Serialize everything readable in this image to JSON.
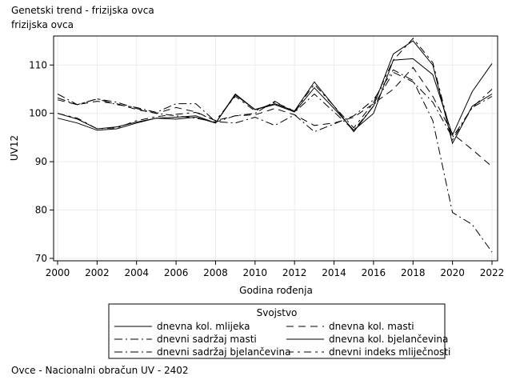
{
  "title": "Genetski trend - frizijska ovca",
  "subtitle": "frizijska ovca",
  "footnote": "Ovce - Nacionalni obračun UV - 2402",
  "chart_data": {
    "type": "line",
    "xlabel": "Godina rođenja",
    "ylabel": "UV12",
    "xlim": [
      2000,
      2022
    ],
    "ylim": [
      69.5,
      116
    ],
    "xticks": [
      2000,
      2002,
      2004,
      2006,
      2008,
      2010,
      2012,
      2014,
      2016,
      2018,
      2020,
      2022
    ],
    "yticks": [
      70,
      80,
      90,
      100,
      110
    ],
    "grid": true,
    "legend": {
      "title": "Svojstvo",
      "placement": "bottom"
    },
    "x": [
      2000,
      2001,
      2002,
      2003,
      2004,
      2005,
      2006,
      2007,
      2008,
      2009,
      2010,
      2011,
      2012,
      2013,
      2014,
      2015,
      2016,
      2017,
      2018,
      2019,
      2020,
      2021,
      2022
    ],
    "series": [
      {
        "name": "dnevna kol. mlijeka",
        "dash": "solid",
        "values": [
          99.0,
          98.0,
          96.5,
          96.8,
          98.0,
          99.0,
          98.8,
          99.2,
          98.0,
          103.8,
          100.8,
          101.8,
          100.3,
          105.3,
          101.0,
          96.5,
          100.0,
          111.0,
          111.3,
          108.0,
          95.5,
          104.5,
          110.3
        ]
      },
      {
        "name": "dnevna kol. masti",
        "dash": "long",
        "values": [
          102.8,
          101.8,
          102.5,
          102.0,
          100.8,
          100.0,
          101.2,
          100.3,
          98.5,
          99.5,
          99.7,
          101.0,
          99.7,
          97.5,
          98.0,
          99.2,
          102.0,
          105.0,
          109.5,
          103.5,
          95.8,
          92.5,
          89.0
        ]
      },
      {
        "name": "dnevni sadržaj masti",
        "dash": "dashdot",
        "values": [
          104.0,
          101.8,
          103.0,
          101.8,
          101.2,
          100.2,
          102.0,
          102.0,
          98.3,
          98.0,
          99.2,
          97.5,
          99.7,
          96.2,
          97.8,
          99.5,
          102.8,
          109.0,
          106.8,
          98.5,
          79.5,
          77.0,
          71.3
        ]
      },
      {
        "name": "dnevna kol. bjelančevina",
        "dash": "solid",
        "values": [
          100.0,
          98.8,
          96.8,
          97.2,
          98.2,
          99.0,
          99.2,
          99.5,
          98.0,
          104.0,
          100.8,
          102.0,
          100.5,
          106.5,
          101.5,
          96.2,
          101.5,
          112.3,
          115.0,
          110.0,
          93.8,
          101.5,
          104.0
        ]
      },
      {
        "name": "dnevni sadržaj bjelančevina",
        "dash": "dashdot",
        "values": [
          103.2,
          101.8,
          103.0,
          102.3,
          101.0,
          100.0,
          99.5,
          99.0,
          98.2,
          99.5,
          100.0,
          102.5,
          100.2,
          104.0,
          100.3,
          96.5,
          101.5,
          108.5,
          106.5,
          102.3,
          95.0,
          101.2,
          103.5
        ]
      },
      {
        "name": "dnevni indeks mliječnosti",
        "dash": "longshort",
        "values": [
          100.0,
          99.0,
          96.8,
          97.0,
          98.5,
          99.3,
          99.8,
          100.2,
          98.5,
          103.5,
          100.5,
          102.3,
          100.5,
          106.0,
          101.5,
          97.0,
          102.2,
          111.0,
          115.5,
          110.5,
          94.5,
          101.2,
          105.0
        ]
      }
    ]
  }
}
